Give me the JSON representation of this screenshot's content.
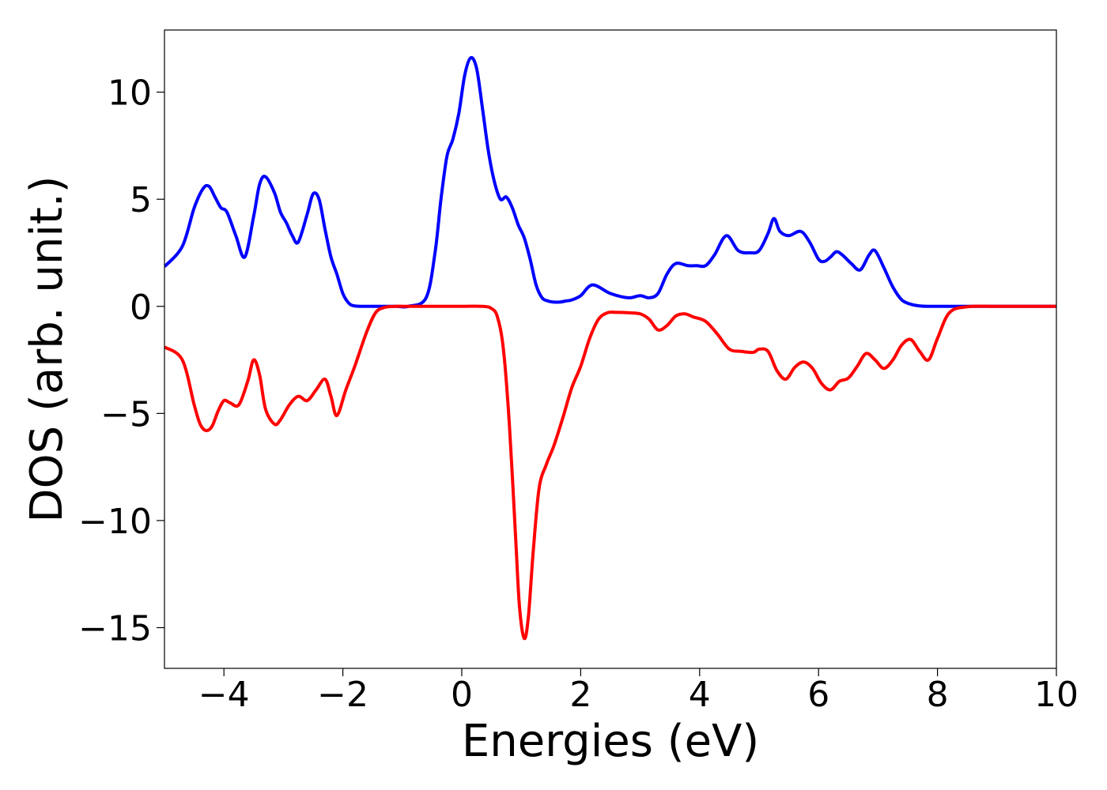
{
  "chart_data": {
    "type": "line",
    "title": "",
    "xlabel": "Energies (eV)",
    "ylabel": "DOS (arb. unit.)",
    "xlim": [
      -5,
      10
    ],
    "ylim": [
      -16.9,
      12.9
    ],
    "xticks": [
      -4,
      -2,
      0,
      2,
      4,
      6,
      8,
      10
    ],
    "xtick_labels": [
      "−4",
      "−2",
      "0",
      "2",
      "4",
      "6",
      "8",
      "10"
    ],
    "yticks": [
      10,
      5,
      0,
      -5,
      -10,
      -15
    ],
    "ytick_labels": [
      "10",
      "5",
      "0",
      "−5",
      "−10",
      "−15"
    ],
    "grid": false,
    "legend": "none",
    "series": [
      {
        "color": "#0000ff",
        "x": [
          -5.0,
          -4.7,
          -4.5,
          -4.35,
          -4.25,
          -4.15,
          -4.05,
          -3.95,
          -3.8,
          -3.65,
          -3.5,
          -3.4,
          -3.3,
          -3.15,
          -3.05,
          -2.95,
          -2.85,
          -2.75,
          -2.6,
          -2.5,
          -2.4,
          -2.3,
          -2.2,
          -2.1,
          -2.0,
          -1.9,
          -1.8,
          -1.6,
          -1.45,
          -1.3,
          -1.1,
          -0.9,
          -0.6,
          -0.45,
          -0.35,
          -0.25,
          -0.15,
          -0.05,
          0.05,
          0.15,
          0.25,
          0.35,
          0.45,
          0.55,
          0.65,
          0.75,
          0.85,
          0.95,
          1.05,
          1.15,
          1.25,
          1.35,
          1.45,
          1.55,
          1.65,
          1.75,
          1.85,
          2.0,
          2.2,
          2.5,
          2.8,
          3.0,
          3.15,
          3.3,
          3.45,
          3.6,
          3.8,
          3.95,
          4.1,
          4.25,
          4.45,
          4.65,
          4.85,
          5.0,
          5.15,
          5.25,
          5.35,
          5.5,
          5.7,
          5.85,
          6.0,
          6.1,
          6.2,
          6.3,
          6.4,
          6.55,
          6.7,
          6.85,
          6.95,
          7.1,
          7.25,
          7.4,
          7.55,
          7.7,
          7.85,
          8.0,
          8.15,
          8.4,
          8.8,
          10.0
        ],
        "y": [
          1.85,
          2.8,
          4.6,
          5.5,
          5.6,
          5.1,
          4.6,
          4.4,
          3.3,
          2.3,
          4.2,
          5.7,
          6.05,
          5.3,
          4.4,
          3.9,
          3.3,
          3.0,
          4.3,
          5.25,
          5.0,
          3.6,
          2.3,
          1.5,
          0.6,
          0.15,
          0.02,
          0.0,
          0.0,
          0.0,
          0.0,
          0.0,
          0.4,
          2.5,
          5.0,
          7.0,
          7.8,
          9.0,
          10.8,
          11.6,
          11.1,
          9.2,
          7.2,
          5.8,
          5.0,
          5.1,
          4.6,
          3.8,
          3.2,
          2.2,
          1.0,
          0.4,
          0.25,
          0.2,
          0.2,
          0.25,
          0.3,
          0.5,
          1.0,
          0.6,
          0.4,
          0.5,
          0.4,
          0.6,
          1.5,
          2.0,
          1.9,
          1.9,
          1.9,
          2.4,
          3.3,
          2.6,
          2.5,
          2.6,
          3.4,
          4.1,
          3.5,
          3.3,
          3.5,
          3.0,
          2.2,
          2.1,
          2.3,
          2.55,
          2.4,
          2.0,
          1.7,
          2.4,
          2.6,
          1.8,
          0.9,
          0.3,
          0.1,
          0.02,
          0.0,
          0.0,
          0.0,
          0.0,
          0.0,
          0.0
        ]
      },
      {
        "color": "#ff0000",
        "x": [
          -5.0,
          -4.7,
          -4.5,
          -4.4,
          -4.3,
          -4.2,
          -4.1,
          -4.0,
          -3.9,
          -3.75,
          -3.6,
          -3.5,
          -3.4,
          -3.3,
          -3.15,
          -3.05,
          -2.9,
          -2.75,
          -2.6,
          -2.45,
          -2.3,
          -2.2,
          -2.1,
          -1.95,
          -1.8,
          -1.6,
          -1.45,
          -1.3,
          -1.1,
          -0.9,
          -0.5,
          0.0,
          0.35,
          0.5,
          0.6,
          0.7,
          0.8,
          0.9,
          0.97,
          1.05,
          1.12,
          1.2,
          1.3,
          1.42,
          1.55,
          1.7,
          1.85,
          2.0,
          2.15,
          2.3,
          2.45,
          2.6,
          2.8,
          3.0,
          3.15,
          3.3,
          3.45,
          3.6,
          3.75,
          3.9,
          4.1,
          4.3,
          4.5,
          4.7,
          4.9,
          5.0,
          5.15,
          5.3,
          5.45,
          5.6,
          5.75,
          5.9,
          6.05,
          6.2,
          6.35,
          6.5,
          6.65,
          6.8,
          6.95,
          7.1,
          7.25,
          7.4,
          7.55,
          7.7,
          7.85,
          8.0,
          8.2,
          8.5,
          9.0,
          10.0
        ],
        "y": [
          -1.9,
          -2.5,
          -4.6,
          -5.5,
          -5.8,
          -5.6,
          -4.9,
          -4.4,
          -4.5,
          -4.6,
          -3.5,
          -2.5,
          -3.2,
          -4.8,
          -5.5,
          -5.3,
          -4.6,
          -4.2,
          -4.4,
          -3.9,
          -3.4,
          -4.2,
          -5.1,
          -3.9,
          -2.8,
          -1.2,
          -0.3,
          -0.05,
          0.0,
          0.0,
          0.0,
          0.0,
          0.0,
          -0.1,
          -0.5,
          -2.0,
          -5.5,
          -10.5,
          -14.0,
          -15.5,
          -14.5,
          -11.5,
          -8.5,
          -7.4,
          -6.5,
          -5.2,
          -3.8,
          -2.8,
          -1.5,
          -0.6,
          -0.3,
          -0.28,
          -0.3,
          -0.35,
          -0.6,
          -1.1,
          -0.9,
          -0.45,
          -0.35,
          -0.5,
          -0.7,
          -1.3,
          -2.0,
          -2.1,
          -2.15,
          -2.0,
          -2.1,
          -3.0,
          -3.4,
          -2.85,
          -2.6,
          -2.9,
          -3.6,
          -3.9,
          -3.5,
          -3.35,
          -2.8,
          -2.2,
          -2.5,
          -2.9,
          -2.5,
          -1.8,
          -1.55,
          -2.1,
          -2.5,
          -1.5,
          -0.3,
          -0.02,
          0.0,
          0.0
        ]
      }
    ]
  }
}
